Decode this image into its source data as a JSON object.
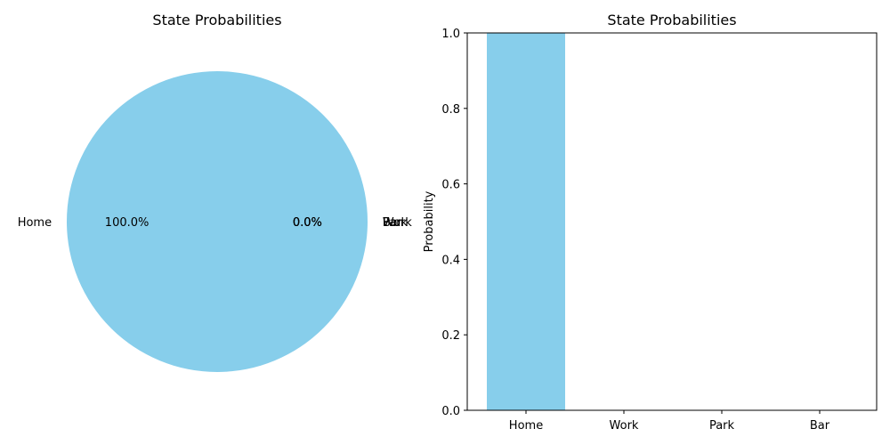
{
  "colors": {
    "primary": "#87CEEB",
    "others": [
      "#87CEEB",
      "#87CEEB",
      "#87CEEB"
    ]
  },
  "chart_data": [
    {
      "type": "pie",
      "title": "State Probabilities",
      "labels": [
        "Home",
        "Work",
        "Park",
        "Bar"
      ],
      "values": [
        1.0,
        0.0,
        0.0,
        0.0
      ],
      "pct_labels": [
        "100.0%",
        "0.0%",
        "0.0%",
        "0.0%"
      ]
    },
    {
      "type": "bar",
      "title": "State Probabilities",
      "categories": [
        "Home",
        "Work",
        "Park",
        "Bar"
      ],
      "values": [
        1.0,
        0.0,
        0.0,
        0.0
      ],
      "xlabel": "",
      "ylabel": "Probability",
      "ylim": [
        0,
        1.0
      ],
      "yticks": [
        "0.0",
        "0.2",
        "0.4",
        "0.6",
        "0.8",
        "1.0"
      ],
      "grid": false
    }
  ]
}
